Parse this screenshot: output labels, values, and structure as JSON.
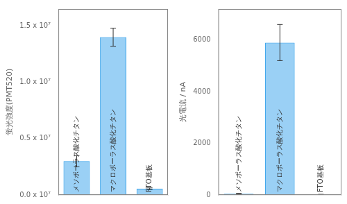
{
  "chart_data": [
    {
      "type": "bar",
      "ylabel": "蛍光強度(PMT520)",
      "categories": [
        "メソポーラス酸化チタン",
        "マクロポーラス酸化チタン",
        "FTO基板"
      ],
      "values": [
        3000000.0,
        14000000.0,
        550000.0
      ],
      "errors": [
        500000.0,
        800000.0,
        80000.0
      ],
      "ylim": [
        0,
        16500000.0
      ],
      "yticks": [
        {
          "value": 0.0,
          "label": "0.0 x 10⁷"
        },
        {
          "value": 5000000.0,
          "label": "0.5 x 10⁷"
        },
        {
          "value": 10000000.0,
          "label": "1.0 x 10⁷"
        },
        {
          "value": 15000000.0,
          "label": "1.5 x 10⁷"
        }
      ],
      "grid": false,
      "tick_labels": "y"
    },
    {
      "type": "bar",
      "ylabel": "光電流 / nA",
      "categories": [
        "メソポーラス酸化チタン",
        "マクロポーラス酸化チタン",
        "FTO基板"
      ],
      "values": [
        50,
        5900,
        20
      ],
      "errors": [
        10,
        700,
        5
      ],
      "ylim": [
        0,
        7200
      ],
      "yticks": [
        0,
        2000,
        4000,
        6000
      ],
      "grid": false,
      "tick_labels": "y"
    }
  ]
}
